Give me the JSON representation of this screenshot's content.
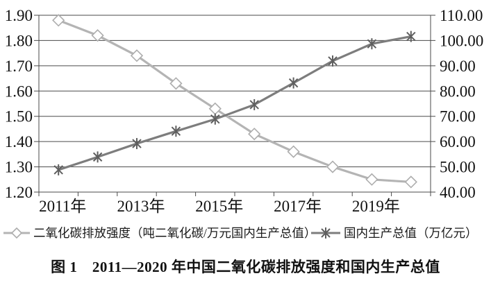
{
  "chart_data": {
    "type": "line",
    "title": "",
    "categories": [
      "2011",
      "2012",
      "2013",
      "2014",
      "2015",
      "2016",
      "2017",
      "2018",
      "2019",
      "2020"
    ],
    "x_tick_labels": [
      {
        "index": 0,
        "label": "2011年"
      },
      {
        "index": 2,
        "label": "2013年"
      },
      {
        "index": 4,
        "label": "2015年"
      },
      {
        "index": 6,
        "label": "2017年"
      },
      {
        "index": 8,
        "label": "2019年"
      }
    ],
    "left_axis": {
      "min": 1.2,
      "max": 1.9,
      "ticks": [
        1.2,
        1.3,
        1.4,
        1.5,
        1.6,
        1.7,
        1.8,
        1.9
      ],
      "labels": [
        "1.20",
        "1.30",
        "1.40",
        "1.50",
        "1.60",
        "1.70",
        "1.80",
        "1.90"
      ]
    },
    "right_axis": {
      "min": 40,
      "max": 110,
      "ticks": [
        40,
        50,
        60,
        70,
        80,
        90,
        100,
        110
      ],
      "labels": [
        "40.00",
        "50.00",
        "60.00",
        "70.00",
        "80.00",
        "90.00",
        "100.00",
        "110.00"
      ]
    },
    "grid": true,
    "legend_position": "bottom",
    "series": [
      {
        "name": "二氧化碳排放强度（吨二氧化碳/万元国内生产总值）",
        "axis": "left",
        "marker": "diamond",
        "color": "#b4b4b4",
        "marker_color": "#adadad",
        "values": [
          1.88,
          1.82,
          1.74,
          1.63,
          1.53,
          1.43,
          1.36,
          1.3,
          1.25,
          1.24
        ]
      },
      {
        "name": "国内生产总值（万亿元）",
        "axis": "right",
        "marker": "asterisk",
        "color": "#7d7d7d",
        "marker_color": "#5e5e5e",
        "values": [
          48.8,
          53.9,
          59.2,
          64.1,
          68.9,
          74.6,
          83.2,
          91.9,
          98.7,
          101.6
        ]
      }
    ]
  },
  "caption": "图 1　2011—2020 年中国二氧化碳排放强度和国内生产总值",
  "colors": {
    "background": "#ffffff",
    "grid": "#4a4a4a",
    "axis": "#4a4a4a",
    "text": "#111111",
    "series_co2": "#b4b4b4",
    "series_gdp": "#7d7d7d"
  }
}
